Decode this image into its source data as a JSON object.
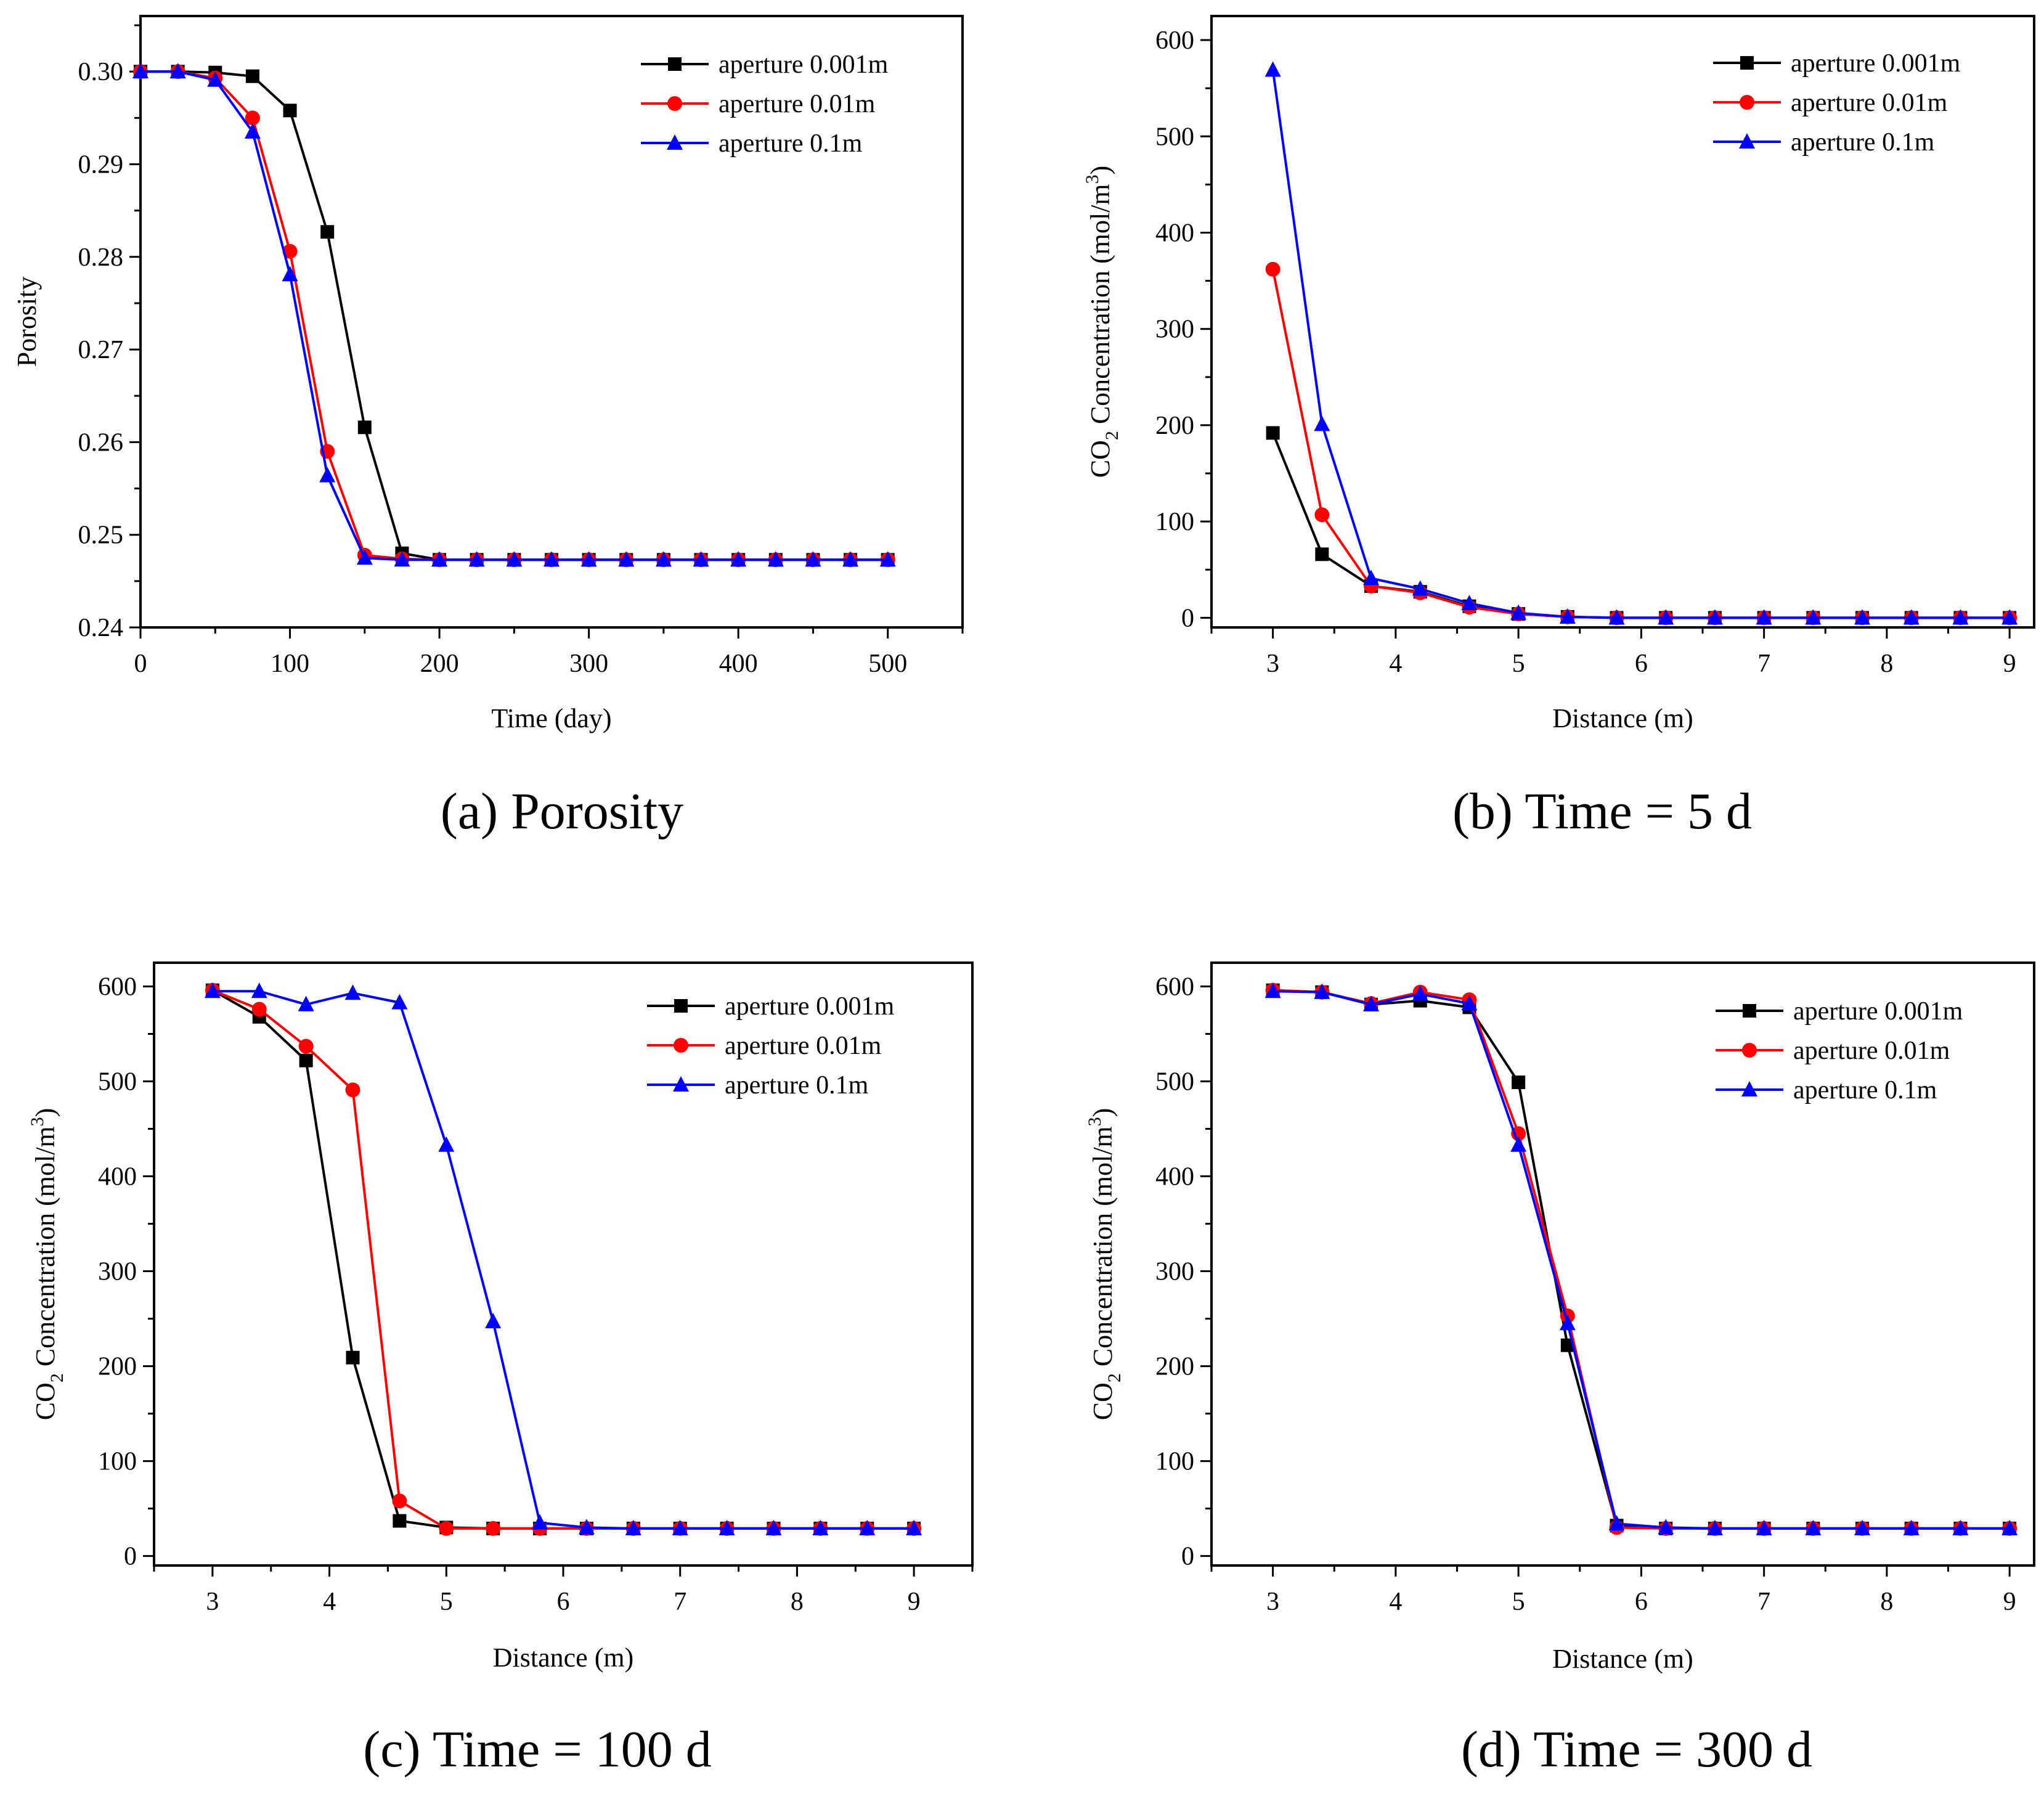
{
  "colors": {
    "black": "#000000",
    "red": "#ff0000",
    "blue": "#0000ff"
  },
  "legend_labels": [
    "aperture 0.001m",
    "aperture 0.01m",
    "aperture 0.1m"
  ],
  "chart_data": [
    {
      "id": "a",
      "type": "line",
      "caption": "(a) Porosity",
      "xlabel": "Time (day)",
      "ylabel": "Porosity",
      "xlim": [
        0,
        550
      ],
      "ylim": [
        0.24,
        0.306
      ],
      "xticks": [
        0,
        100,
        200,
        300,
        400,
        500
      ],
      "yticks": [
        0.24,
        0.25,
        0.26,
        0.27,
        0.28,
        0.29,
        0.3
      ],
      "ytick_labels": [
        "0.24",
        "0.25",
        "0.26",
        "0.27",
        "0.28",
        "0.29",
        "0.30"
      ],
      "legend_position": "top-right",
      "x": [
        0,
        25,
        50,
        75,
        100,
        125,
        150,
        175,
        200,
        225,
        250,
        275,
        300,
        325,
        350,
        375,
        400,
        425,
        450,
        475,
        500
      ],
      "series": [
        {
          "name": "aperture 0.001m",
          "color": "#000000",
          "marker": "square",
          "values": [
            0.3,
            0.3,
            0.2999,
            0.2995,
            0.2958,
            0.2827,
            0.2616,
            0.248,
            0.2473,
            0.2473,
            0.2473,
            0.2473,
            0.2473,
            0.2473,
            0.2473,
            0.2473,
            0.2473,
            0.2473,
            0.2473,
            0.2473,
            0.2473
          ]
        },
        {
          "name": "aperture 0.01m",
          "color": "#ff0000",
          "marker": "circle",
          "values": [
            0.3,
            0.3,
            0.2993,
            0.295,
            0.2806,
            0.259,
            0.2478,
            0.2474,
            0.2473,
            0.2473,
            0.2473,
            0.2473,
            0.2473,
            0.2473,
            0.2473,
            0.2473,
            0.2473,
            0.2473,
            0.2473,
            0.2473,
            0.2473
          ]
        },
        {
          "name": "aperture 0.1m",
          "color": "#0000ff",
          "marker": "triangle",
          "values": [
            0.3,
            0.3,
            0.2991,
            0.2935,
            0.2781,
            0.2564,
            0.2475,
            0.2473,
            0.2473,
            0.2473,
            0.2473,
            0.2473,
            0.2473,
            0.2473,
            0.2473,
            0.2473,
            0.2473,
            0.2473,
            0.2473,
            0.2473,
            0.2473
          ]
        }
      ]
    },
    {
      "id": "b",
      "type": "line",
      "caption": "(b) Time = 5 d",
      "xlabel": "Distance (m)",
      "ylabel_parts": [
        "CO",
        "2",
        "  Concentration (mol/m",
        "3",
        ")"
      ],
      "xlim": [
        2.5,
        9.2
      ],
      "ylim": [
        -10,
        625
      ],
      "xticks": [
        3,
        4,
        5,
        6,
        7,
        8,
        9
      ],
      "yticks": [
        0,
        100,
        200,
        300,
        400,
        500,
        600
      ],
      "ytick_labels": [
        "0",
        "100",
        "200",
        "300",
        "400",
        "500",
        "600"
      ],
      "legend_position": "top-right",
      "x": [
        3,
        3.4,
        3.8,
        4.2,
        4.6,
        5,
        5.4,
        5.8,
        6.2,
        6.6,
        7,
        7.4,
        7.8,
        8.2,
        8.6,
        9
      ],
      "series": [
        {
          "name": "aperture 0.001m",
          "color": "#000000",
          "marker": "square",
          "values": [
            192,
            66,
            33,
            27,
            12,
            4,
            1,
            0,
            0,
            0,
            0,
            0,
            0,
            0,
            0,
            0
          ]
        },
        {
          "name": "aperture 0.01m",
          "color": "#ff0000",
          "marker": "circle",
          "values": [
            362,
            107,
            33,
            26,
            11,
            4,
            1,
            0,
            0,
            0,
            0,
            0,
            0,
            0,
            0,
            0
          ]
        },
        {
          "name": "aperture 0.1m",
          "color": "#0000ff",
          "marker": "triangle",
          "values": [
            569,
            201,
            41,
            30,
            15,
            5,
            1,
            0,
            0,
            0,
            0,
            0,
            0,
            0,
            0,
            0
          ]
        }
      ]
    },
    {
      "id": "c",
      "type": "line",
      "caption": "(c) Time = 100 d",
      "xlabel": "Distance (m)",
      "ylabel_parts": [
        "CO",
        "2",
        "  Concentration (mol/m",
        "3",
        ")"
      ],
      "xlim": [
        2.5,
        9.5
      ],
      "ylim": [
        -10,
        625
      ],
      "xticks": [
        3,
        4,
        5,
        6,
        7,
        8,
        9
      ],
      "yticks": [
        0,
        100,
        200,
        300,
        400,
        500,
        600
      ],
      "ytick_labels": [
        "0",
        "100",
        "200",
        "300",
        "400",
        "500",
        "600"
      ],
      "legend_position": "top-right",
      "x": [
        3,
        3.4,
        3.8,
        4.2,
        4.6,
        5,
        5.4,
        5.8,
        6.2,
        6.6,
        7,
        7.4,
        7.8,
        8.2,
        8.6,
        9
      ],
      "series": [
        {
          "name": "aperture 0.001m",
          "color": "#000000",
          "marker": "square",
          "values": [
            596,
            568,
            522,
            209,
            37,
            30,
            29,
            29,
            29,
            29,
            29,
            29,
            29,
            29,
            29,
            29
          ]
        },
        {
          "name": "aperture 0.01m",
          "color": "#ff0000",
          "marker": "circle",
          "values": [
            596,
            576,
            537,
            491,
            58,
            29,
            29,
            29,
            29,
            29,
            29,
            29,
            29,
            29,
            29,
            29
          ]
        },
        {
          "name": "aperture 0.1m",
          "color": "#0000ff",
          "marker": "triangle",
          "values": [
            595,
            595,
            581,
            593,
            583,
            433,
            247,
            35,
            30,
            29,
            29,
            29,
            29,
            29,
            29,
            29
          ]
        }
      ]
    },
    {
      "id": "d",
      "type": "line",
      "caption": "(d) Time = 300 d",
      "xlabel": "Distance (m)",
      "ylabel_parts": [
        "CO",
        "2",
        "  Concentration (mol/m",
        "3",
        ")"
      ],
      "xlim": [
        2.5,
        9.2
      ],
      "ylim": [
        -10,
        625
      ],
      "xticks": [
        3,
        4,
        5,
        6,
        7,
        8,
        9
      ],
      "yticks": [
        0,
        100,
        200,
        300,
        400,
        500,
        600
      ],
      "ytick_labels": [
        "0",
        "100",
        "200",
        "300",
        "400",
        "500",
        "600"
      ],
      "legend_position": "top-right",
      "x": [
        3,
        3.4,
        3.8,
        4.2,
        4.6,
        5,
        5.4,
        5.8,
        6.2,
        6.6,
        7,
        7.4,
        7.8,
        8.2,
        8.6,
        9
      ],
      "series": [
        {
          "name": "aperture 0.001m",
          "color": "#000000",
          "marker": "square",
          "values": [
            596,
            594,
            581,
            585,
            578,
            499,
            222,
            32,
            29,
            29,
            29,
            29,
            29,
            29,
            29,
            29
          ]
        },
        {
          "name": "aperture 0.01m",
          "color": "#ff0000",
          "marker": "circle",
          "values": [
            596,
            594,
            582,
            594,
            586,
            445,
            253,
            30,
            29,
            29,
            29,
            29,
            29,
            29,
            29,
            29
          ]
        },
        {
          "name": "aperture 0.1m",
          "color": "#0000ff",
          "marker": "triangle",
          "values": [
            595,
            594,
            581,
            592,
            582,
            433,
            245,
            34,
            30,
            29,
            29,
            29,
            29,
            29,
            29,
            29
          ]
        }
      ]
    }
  ]
}
